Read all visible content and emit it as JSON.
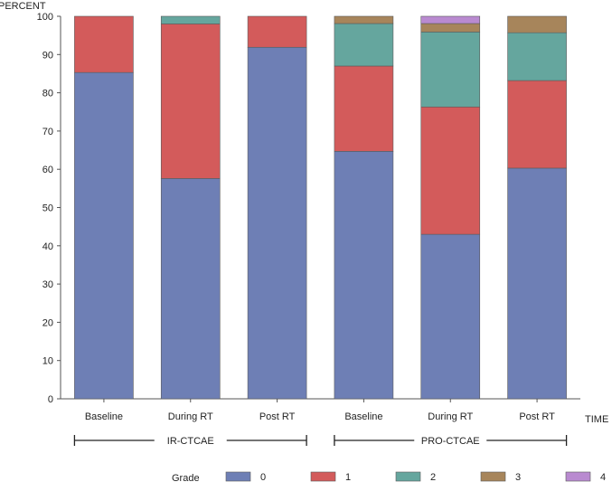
{
  "chart_data": {
    "type": "bar",
    "stacked": true,
    "ylabel": "PERCENT",
    "xlabel": "TIME",
    "ylim": [
      0,
      100
    ],
    "yticks": [
      0,
      10,
      20,
      30,
      40,
      50,
      60,
      70,
      80,
      90,
      100
    ],
    "categories": [
      "Baseline",
      "During RT",
      "Post RT",
      "Baseline",
      "During RT",
      "Post RT"
    ],
    "groups": [
      {
        "name": "IR-CTCAE",
        "category_indices": [
          0,
          1,
          2
        ]
      },
      {
        "name": "PRO-CTCAE",
        "category_indices": [
          3,
          4,
          5
        ]
      }
    ],
    "legend_title": "Grade",
    "series": [
      {
        "name": "0",
        "color": "#6e7fb5",
        "values": [
          85.3,
          57.6,
          91.9,
          64.7,
          43.0,
          60.3
        ]
      },
      {
        "name": "1",
        "color": "#d35b5b",
        "values": [
          14.7,
          40.4,
          8.1,
          22.3,
          33.3,
          22.9
        ]
      },
      {
        "name": "2",
        "color": "#65a69e",
        "values": [
          0,
          2.0,
          0,
          11.1,
          19.6,
          12.5
        ]
      },
      {
        "name": "3",
        "color": "#a7855b",
        "values": [
          0,
          0,
          0,
          1.9,
          2.2,
          4.3
        ]
      },
      {
        "name": "4",
        "color": "#b98ad0",
        "values": [
          0,
          0,
          0,
          0,
          1.9,
          0
        ]
      }
    ]
  }
}
